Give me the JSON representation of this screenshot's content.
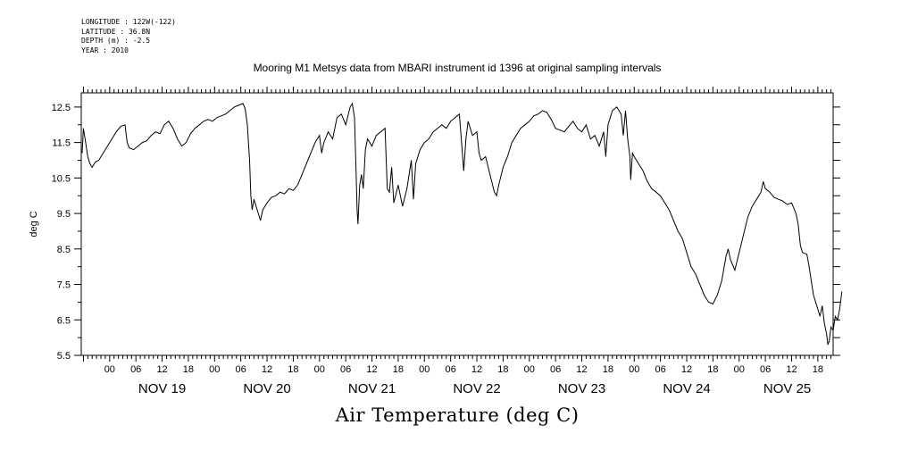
{
  "metadata": {
    "longitude": "LONGITUDE : 122W(-122)",
    "latitude": "LATITUDE : 36.8N",
    "depth": "DEPTH (m) : -2.5",
    "year": "YEAR : 2010"
  },
  "chart_data": {
    "type": "line",
    "title": "Mooring M1 Metsys data from MBARI instrument id 1396 at original sampling intervals",
    "xlabel": "Air Temperature (deg C)",
    "ylabel": "deg C",
    "ylim": [
      5.5,
      12.9
    ],
    "yticks": [
      "5.5",
      "6.5",
      "7.5",
      "8.5",
      "9.5",
      "10.5",
      "11.5",
      "12.5"
    ],
    "xlim_hours_from_nov19_00": [
      -6.5,
      165.5
    ],
    "hour_tick_labels": [
      {
        "label": "00",
        "hour": 0
      },
      {
        "label": "06",
        "hour": 6
      },
      {
        "label": "12",
        "hour": 12
      },
      {
        "label": "18",
        "hour": 18
      },
      {
        "label": "00",
        "hour": 24
      },
      {
        "label": "06",
        "hour": 30
      },
      {
        "label": "12",
        "hour": 36
      },
      {
        "label": "18",
        "hour": 42
      },
      {
        "label": "00",
        "hour": 48
      },
      {
        "label": "06",
        "hour": 54
      },
      {
        "label": "12",
        "hour": 60
      },
      {
        "label": "18",
        "hour": 66
      },
      {
        "label": "00",
        "hour": 72
      },
      {
        "label": "06",
        "hour": 78
      },
      {
        "label": "12",
        "hour": 84
      },
      {
        "label": "18",
        "hour": 90
      },
      {
        "label": "00",
        "hour": 96
      },
      {
        "label": "06",
        "hour": 102
      },
      {
        "label": "12",
        "hour": 108
      },
      {
        "label": "18",
        "hour": 114
      },
      {
        "label": "00",
        "hour": 120
      },
      {
        "label": "06",
        "hour": 126
      },
      {
        "label": "12",
        "hour": 132
      },
      {
        "label": "18",
        "hour": 138
      },
      {
        "label": "00",
        "hour": 144
      },
      {
        "label": "06",
        "hour": 150
      },
      {
        "label": "12",
        "hour": 156
      },
      {
        "label": "18",
        "hour": 162
      }
    ],
    "day_labels": [
      {
        "label": "NOV 19",
        "hour": 12
      },
      {
        "label": "NOV 20",
        "hour": 36
      },
      {
        "label": "NOV 21",
        "hour": 60
      },
      {
        "label": "NOV 22",
        "hour": 84
      },
      {
        "label": "NOV 23",
        "hour": 108
      },
      {
        "label": "NOV 24",
        "hour": 132
      },
      {
        "label": "NOV 25",
        "hour": 155
      }
    ],
    "series": [
      {
        "color": "#000000",
        "points": [
          [
            -6.3,
            11.2
          ],
          [
            -6.0,
            11.9
          ],
          [
            -5.5,
            11.5
          ],
          [
            -5.0,
            11.1
          ],
          [
            -4.5,
            10.9
          ],
          [
            -4.0,
            10.8
          ],
          [
            -3.3,
            10.95
          ],
          [
            -2.5,
            11.0
          ],
          [
            -1.5,
            11.2
          ],
          [
            -0.5,
            11.4
          ],
          [
            0.5,
            11.6
          ],
          [
            1.5,
            11.8
          ],
          [
            2.5,
            11.95
          ],
          [
            3.5,
            12.0
          ],
          [
            4.0,
            11.5
          ],
          [
            4.5,
            11.35
          ],
          [
            5.5,
            11.3
          ],
          [
            6.5,
            11.4
          ],
          [
            7.5,
            11.5
          ],
          [
            8.5,
            11.55
          ],
          [
            9.5,
            11.7
          ],
          [
            10.5,
            11.8
          ],
          [
            11.5,
            11.75
          ],
          [
            12.5,
            12.0
          ],
          [
            13.5,
            12.1
          ],
          [
            14.5,
            11.9
          ],
          [
            15.5,
            11.6
          ],
          [
            16.5,
            11.4
          ],
          [
            17.5,
            11.5
          ],
          [
            18.5,
            11.75
          ],
          [
            19.5,
            11.9
          ],
          [
            20.5,
            12.0
          ],
          [
            21.5,
            12.1
          ],
          [
            22.5,
            12.15
          ],
          [
            23.5,
            12.1
          ],
          [
            24.5,
            12.2
          ],
          [
            25.5,
            12.25
          ],
          [
            26.5,
            12.3
          ],
          [
            27.5,
            12.4
          ],
          [
            28.5,
            12.5
          ],
          [
            29.5,
            12.55
          ],
          [
            30.5,
            12.6
          ],
          [
            31.0,
            12.45
          ],
          [
            31.5,
            12.0
          ],
          [
            32.0,
            11.0
          ],
          [
            32.3,
            10.0
          ],
          [
            32.6,
            9.6
          ],
          [
            33.0,
            9.9
          ],
          [
            33.5,
            9.7
          ],
          [
            34.0,
            9.5
          ],
          [
            34.5,
            9.3
          ],
          [
            35.0,
            9.6
          ],
          [
            36.0,
            9.8
          ],
          [
            37.0,
            9.95
          ],
          [
            38.0,
            10.0
          ],
          [
            39.0,
            10.1
          ],
          [
            40.0,
            10.05
          ],
          [
            41.0,
            10.2
          ],
          [
            42.0,
            10.15
          ],
          [
            43.0,
            10.3
          ],
          [
            44.0,
            10.6
          ],
          [
            45.0,
            10.9
          ],
          [
            46.0,
            11.2
          ],
          [
            47.0,
            11.5
          ],
          [
            48.0,
            11.7
          ],
          [
            48.5,
            11.2
          ],
          [
            49.0,
            11.5
          ],
          [
            50.0,
            11.8
          ],
          [
            51.0,
            11.6
          ],
          [
            52.0,
            12.2
          ],
          [
            53.0,
            12.3
          ],
          [
            54.0,
            12.0
          ],
          [
            55.0,
            12.5
          ],
          [
            55.5,
            12.6
          ],
          [
            56.0,
            12.2
          ],
          [
            56.3,
            11.0
          ],
          [
            56.6,
            9.6
          ],
          [
            56.8,
            9.2
          ],
          [
            57.2,
            10.3
          ],
          [
            57.6,
            10.6
          ],
          [
            58.0,
            10.2
          ],
          [
            58.5,
            11.3
          ],
          [
            59.0,
            11.6
          ],
          [
            60.0,
            11.4
          ],
          [
            61.0,
            11.7
          ],
          [
            62.0,
            11.8
          ],
          [
            63.0,
            11.9
          ],
          [
            63.5,
            10.2
          ],
          [
            64.0,
            10.1
          ],
          [
            64.5,
            10.8
          ],
          [
            65.0,
            9.8
          ],
          [
            66.0,
            10.3
          ],
          [
            67.0,
            9.7
          ],
          [
            68.0,
            10.2
          ],
          [
            69.0,
            11.0
          ],
          [
            69.5,
            9.9
          ],
          [
            70.0,
            10.9
          ],
          [
            71.0,
            11.3
          ],
          [
            72.0,
            11.5
          ],
          [
            73.0,
            11.6
          ],
          [
            74.0,
            11.8
          ],
          [
            75.0,
            11.9
          ],
          [
            76.0,
            12.0
          ],
          [
            77.0,
            11.9
          ],
          [
            78.0,
            12.1
          ],
          [
            79.0,
            12.2
          ],
          [
            80.0,
            12.3
          ],
          [
            80.5,
            11.5
          ],
          [
            81.0,
            10.7
          ],
          [
            81.5,
            11.6
          ],
          [
            82.0,
            12.1
          ],
          [
            83.0,
            11.7
          ],
          [
            84.0,
            11.8
          ],
          [
            84.5,
            11.2
          ],
          [
            85.0,
            11.0
          ],
          [
            86.0,
            11.1
          ],
          [
            87.0,
            10.6
          ],
          [
            88.0,
            10.1
          ],
          [
            88.5,
            10.0
          ],
          [
            89.0,
            10.3
          ],
          [
            90.0,
            10.8
          ],
          [
            91.0,
            11.1
          ],
          [
            92.0,
            11.5
          ],
          [
            93.0,
            11.7
          ],
          [
            94.0,
            11.9
          ],
          [
            95.0,
            12.0
          ],
          [
            96.0,
            12.1
          ],
          [
            97.0,
            12.25
          ],
          [
            98.0,
            12.3
          ],
          [
            99.0,
            12.4
          ],
          [
            100.0,
            12.35
          ],
          [
            101.0,
            12.15
          ],
          [
            102.0,
            11.9
          ],
          [
            103.0,
            11.85
          ],
          [
            104.0,
            11.8
          ],
          [
            105.0,
            11.95
          ],
          [
            106.0,
            12.1
          ],
          [
            107.0,
            11.9
          ],
          [
            108.0,
            11.8
          ],
          [
            109.0,
            12.0
          ],
          [
            110.0,
            11.6
          ],
          [
            111.0,
            11.7
          ],
          [
            112.0,
            11.4
          ],
          [
            113.0,
            11.8
          ],
          [
            113.5,
            11.1
          ],
          [
            114.0,
            12.0
          ],
          [
            115.0,
            12.4
          ],
          [
            116.0,
            12.5
          ],
          [
            117.0,
            12.3
          ],
          [
            117.5,
            11.7
          ],
          [
            118.0,
            12.4
          ],
          [
            118.5,
            11.6
          ],
          [
            119.0,
            11.1
          ],
          [
            119.2,
            10.45
          ],
          [
            119.6,
            11.2
          ],
          [
            120.0,
            11.1
          ],
          [
            121.0,
            10.9
          ],
          [
            122.0,
            10.7
          ],
          [
            123.0,
            10.4
          ],
          [
            124.0,
            10.2
          ],
          [
            125.0,
            10.1
          ],
          [
            126.0,
            10.0
          ],
          [
            127.0,
            9.8
          ],
          [
            128.0,
            9.6
          ],
          [
            129.0,
            9.3
          ],
          [
            130.0,
            9.0
          ],
          [
            131.0,
            8.8
          ],
          [
            132.0,
            8.4
          ],
          [
            133.0,
            8.0
          ],
          [
            134.0,
            7.8
          ],
          [
            135.0,
            7.5
          ],
          [
            136.0,
            7.2
          ],
          [
            137.0,
            7.0
          ],
          [
            138.0,
            6.95
          ],
          [
            139.0,
            7.2
          ],
          [
            140.0,
            7.6
          ],
          [
            141.0,
            8.3
          ],
          [
            141.5,
            8.5
          ],
          [
            142.0,
            8.2
          ],
          [
            143.0,
            7.9
          ],
          [
            144.0,
            8.4
          ],
          [
            145.0,
            8.9
          ],
          [
            146.0,
            9.4
          ],
          [
            147.0,
            9.7
          ],
          [
            148.0,
            9.9
          ],
          [
            149.0,
            10.1
          ],
          [
            149.5,
            10.4
          ],
          [
            150.0,
            10.2
          ],
          [
            151.0,
            10.1
          ],
          [
            152.0,
            9.95
          ],
          [
            153.0,
            9.9
          ],
          [
            154.0,
            9.85
          ],
          [
            155.0,
            9.75
          ],
          [
            156.0,
            9.8
          ],
          [
            157.0,
            9.5
          ],
          [
            157.5,
            9.2
          ],
          [
            158.0,
            8.6
          ],
          [
            158.5,
            8.4
          ],
          [
            159.5,
            8.35
          ],
          [
            160.0,
            8.0
          ],
          [
            160.5,
            7.6
          ],
          [
            161.0,
            7.2
          ],
          [
            161.5,
            7.0
          ],
          [
            162.0,
            6.8
          ],
          [
            162.5,
            6.6
          ],
          [
            163.0,
            6.9
          ],
          [
            163.5,
            6.4
          ],
          [
            164.0,
            6.1
          ],
          [
            164.3,
            5.8
          ],
          [
            164.6,
            5.9
          ],
          [
            165.0,
            6.3
          ],
          [
            165.5,
            6.2
          ],
          [
            166.0,
            6.6
          ],
          [
            166.5,
            6.5
          ],
          [
            167.0,
            6.8
          ],
          [
            167.5,
            7.3
          ]
        ]
      }
    ]
  }
}
